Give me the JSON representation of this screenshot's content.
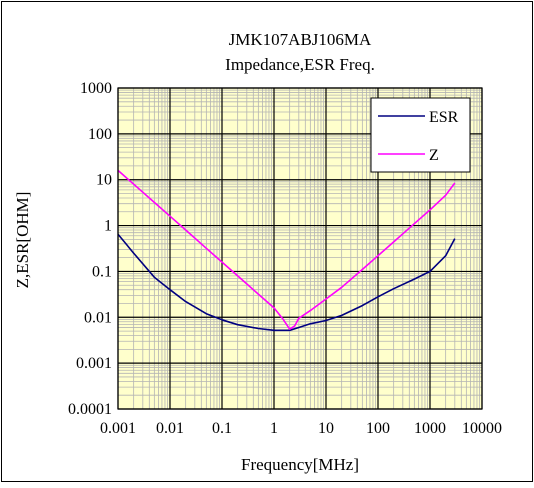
{
  "chart_data": {
    "type": "line",
    "title": "JMK107ABJ106MA",
    "subtitle": "Impedance,ESR  Freq.",
    "xlabel": "Frequency[MHz]",
    "ylabel": "Z,ESR[OHM]",
    "x_scale": "log",
    "y_scale": "log",
    "xlim": [
      0.001,
      10000
    ],
    "ylim": [
      0.0001,
      1000
    ],
    "x_ticks": [
      "0.001",
      "0.01",
      "0.1",
      "1",
      "10",
      "100",
      "1000",
      "10000"
    ],
    "y_ticks": [
      "0.0001",
      "0.001",
      "0.01",
      "0.1",
      "1",
      "10",
      "100",
      "1000"
    ],
    "grid": true,
    "legend_position": "top-right",
    "series": [
      {
        "name": "ESR",
        "color": "#000080",
        "x": [
          0.001,
          0.002,
          0.005,
          0.01,
          0.02,
          0.05,
          0.1,
          0.2,
          0.5,
          1,
          2,
          3,
          5,
          10,
          20,
          50,
          100,
          200,
          500,
          1000,
          2000,
          3000
        ],
        "y": [
          0.65,
          0.25,
          0.075,
          0.04,
          0.022,
          0.012,
          0.0088,
          0.0069,
          0.0057,
          0.0052,
          0.0052,
          0.006,
          0.0072,
          0.0085,
          0.011,
          0.018,
          0.028,
          0.042,
          0.068,
          0.1,
          0.22,
          0.52
        ]
      },
      {
        "name": "Z",
        "color": "#ff00ff",
        "x": [
          0.001,
          0.002,
          0.005,
          0.01,
          0.02,
          0.05,
          0.1,
          0.2,
          0.5,
          1,
          1.5,
          2,
          2.5,
          3,
          5,
          10,
          20,
          50,
          100,
          200,
          500,
          1000,
          2000,
          3000
        ],
        "y": [
          16,
          8,
          3.2,
          1.6,
          0.8,
          0.32,
          0.16,
          0.08,
          0.032,
          0.016,
          0.009,
          0.0055,
          0.0065,
          0.0095,
          0.014,
          0.025,
          0.045,
          0.11,
          0.22,
          0.44,
          1.1,
          2.2,
          4.6,
          8.5
        ]
      }
    ]
  }
}
